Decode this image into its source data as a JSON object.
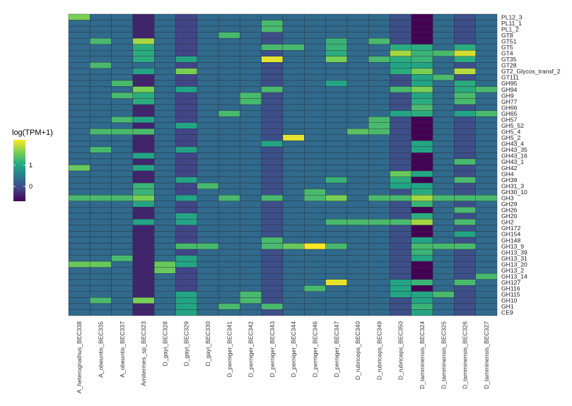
{
  "chart_data": {
    "type": "heatmap",
    "legend": {
      "title": "log(TPM+1)",
      "ticks": [
        0,
        1
      ],
      "range": [
        -0.7,
        2.2
      ],
      "placement": "left"
    },
    "colormap": [
      "#440154",
      "#414487",
      "#2a788e",
      "#22a884",
      "#7ad151",
      "#fde725"
    ],
    "columns": [
      "A_heterognathus_BEC338",
      "A_obeuntis_BEC335",
      "A_obeuntis_BEC337",
      "Amitermes_sp_BEC323",
      "D_gayi_BEC328",
      "D_gayi_BEC329",
      "D_gayi_BEC330",
      "D_perniger_BEC341",
      "D_perniger_BEC342",
      "D_perniger_BEC343",
      "D_perniger_BEC344",
      "D_perniger_BEC346",
      "D_perniger_BEC347",
      "D_rubriceps_BEC340",
      "D_rubriceps_BEC349",
      "D_rubriceps_BEC350",
      "D_tamminensis_BEC324",
      "D_tamminensis_BEC325",
      "D_tamminensis_BEC326",
      "D_tamminensis_BEC327"
    ],
    "rows": [
      "PL12_3",
      "PL11_1",
      "PL1_2",
      "GT8",
      "GT51",
      "GT5",
      "GT4",
      "GT35",
      "GT28",
      "GT2_Glycos_transf_2",
      "GT111",
      "GH95",
      "GH94",
      "GH9",
      "GH77",
      "GH66",
      "GH65",
      "GH57",
      "GH5_52",
      "GH5_4",
      "GH5_2",
      "GH43_4",
      "GH43_35",
      "GH43_16",
      "GH43_1",
      "GH42",
      "GH4",
      "GH39",
      "GH31_3",
      "GH30_10",
      "GH3",
      "GH29",
      "GH26",
      "GH20",
      "GH2",
      "GH172",
      "GH154",
      "GH148",
      "GH13_9",
      "GH13_39",
      "GH13_31",
      "GH13_20",
      "GH13_2",
      "GH13_14",
      "GH127",
      "GH116",
      "GH115",
      "GH10",
      "GH1",
      "CE9"
    ],
    "values": [
      [
        1.6,
        0.3,
        0.3,
        -0.4,
        0.3,
        -0.1,
        0.3,
        0.3,
        0.3,
        0.3,
        0.3,
        0.3,
        0.3,
        0.3,
        0.3,
        0.0,
        -0.7,
        0.3,
        0.0,
        0.3
      ],
      [
        0.3,
        0.3,
        0.3,
        -0.4,
        0.3,
        -0.1,
        0.3,
        0.3,
        0.3,
        1.3,
        0.3,
        0.3,
        0.3,
        0.3,
        0.3,
        0.0,
        -0.7,
        0.3,
        0.0,
        0.3
      ],
      [
        0.3,
        0.3,
        0.3,
        -0.4,
        0.3,
        -0.1,
        0.3,
        0.3,
        0.3,
        1.3,
        0.3,
        0.3,
        0.3,
        0.3,
        0.3,
        0.0,
        -0.7,
        0.3,
        0.0,
        0.3
      ],
      [
        0.3,
        0.3,
        0.3,
        -0.4,
        0.3,
        -0.1,
        0.3,
        1.3,
        0.3,
        0.0,
        0.3,
        0.3,
        0.3,
        0.3,
        0.3,
        0.0,
        -0.7,
        0.3,
        0.0,
        0.3
      ],
      [
        0.3,
        1.3,
        0.3,
        1.8,
        0.3,
        -0.1,
        0.3,
        0.3,
        0.3,
        0.0,
        0.3,
        0.3,
        1.2,
        0.3,
        1.3,
        0.0,
        -0.7,
        0.3,
        0.0,
        0.3
      ],
      [
        0.3,
        0.3,
        0.3,
        1.1,
        0.3,
        -0.1,
        0.3,
        0.3,
        0.3,
        1.3,
        1.3,
        0.3,
        1.2,
        0.3,
        0.3,
        1.1,
        1.1,
        0.3,
        1.1,
        0.3
      ],
      [
        0.3,
        0.3,
        0.3,
        1.1,
        0.3,
        -0.1,
        0.3,
        0.3,
        0.3,
        0.0,
        0.3,
        0.3,
        1.1,
        0.3,
        0.3,
        1.8,
        1.2,
        1.3,
        2.0,
        0.3
      ],
      [
        0.3,
        0.3,
        0.3,
        1.1,
        0.3,
        1.0,
        0.3,
        0.3,
        0.3,
        2.1,
        0.3,
        0.3,
        1.6,
        0.3,
        1.3,
        1.1,
        1.2,
        0.3,
        1.1,
        0.3
      ],
      [
        0.3,
        1.3,
        0.3,
        0.3,
        0.3,
        -0.1,
        0.3,
        0.3,
        0.3,
        0.0,
        0.3,
        0.3,
        0.3,
        0.3,
        0.3,
        1.0,
        1.0,
        0.3,
        0.0,
        0.3
      ],
      [
        0.3,
        0.3,
        0.3,
        1.0,
        0.3,
        1.6,
        0.3,
        0.3,
        0.3,
        0.0,
        0.3,
        0.3,
        0.3,
        0.3,
        0.3,
        1.1,
        1.6,
        0.3,
        1.9,
        0.3
      ],
      [
        0.3,
        0.3,
        0.3,
        -0.4,
        0.3,
        -0.1,
        0.3,
        0.3,
        0.3,
        0.0,
        0.3,
        0.3,
        0.3,
        0.3,
        0.3,
        0.0,
        1.0,
        1.3,
        0.0,
        0.3
      ],
      [
        0.3,
        0.3,
        1.3,
        -0.4,
        0.3,
        -0.1,
        0.3,
        0.3,
        0.3,
        0.0,
        0.3,
        0.3,
        1.0,
        0.3,
        0.3,
        0.0,
        1.0,
        0.3,
        1.1,
        0.3
      ],
      [
        0.3,
        0.3,
        0.3,
        1.6,
        0.3,
        1.0,
        0.3,
        0.3,
        0.3,
        1.3,
        0.3,
        0.3,
        0.3,
        0.3,
        0.3,
        1.3,
        1.6,
        0.3,
        1.1,
        1.3
      ],
      [
        0.3,
        0.3,
        1.3,
        1.1,
        0.3,
        -0.1,
        0.3,
        0.3,
        1.3,
        0.0,
        0.3,
        0.3,
        0.3,
        0.3,
        0.3,
        0.0,
        1.0,
        0.3,
        1.3,
        0.3
      ],
      [
        0.3,
        0.3,
        0.3,
        1.1,
        0.3,
        -0.1,
        0.3,
        0.3,
        1.3,
        0.0,
        0.3,
        0.3,
        0.3,
        0.3,
        0.3,
        0.0,
        1.1,
        0.3,
        1.3,
        0.3
      ],
      [
        0.3,
        0.3,
        0.3,
        -0.4,
        0.3,
        -0.1,
        0.3,
        0.3,
        0.3,
        0.0,
        0.3,
        0.3,
        0.3,
        0.3,
        0.3,
        0.0,
        1.3,
        0.3,
        0.0,
        0.3
      ],
      [
        0.3,
        0.3,
        0.3,
        -0.4,
        0.3,
        -0.1,
        0.3,
        1.3,
        0.3,
        0.0,
        0.3,
        0.3,
        0.3,
        0.3,
        0.3,
        1.0,
        1.1,
        0.3,
        1.0,
        1.3
      ],
      [
        0.3,
        0.3,
        1.3,
        1.0,
        0.3,
        -0.1,
        0.3,
        0.3,
        0.3,
        0.0,
        0.3,
        0.3,
        0.3,
        0.3,
        1.3,
        0.0,
        -0.7,
        0.3,
        0.0,
        0.3
      ],
      [
        0.3,
        0.3,
        0.3,
        -0.4,
        0.3,
        1.0,
        0.3,
        0.3,
        0.3,
        0.0,
        0.3,
        0.3,
        0.3,
        0.3,
        1.3,
        0.0,
        -0.7,
        0.3,
        0.0,
        0.3
      ],
      [
        0.3,
        1.3,
        1.3,
        1.3,
        0.3,
        -0.1,
        0.3,
        0.3,
        0.3,
        0.0,
        0.3,
        0.3,
        0.3,
        1.4,
        1.3,
        0.0,
        -0.7,
        0.3,
        0.0,
        0.3
      ],
      [
        0.3,
        0.3,
        0.3,
        -0.4,
        0.3,
        -0.1,
        0.3,
        0.3,
        0.3,
        0.0,
        2.1,
        0.3,
        0.3,
        0.3,
        0.3,
        0.0,
        -0.7,
        0.3,
        0.0,
        0.3
      ],
      [
        0.3,
        0.3,
        0.3,
        -0.4,
        0.3,
        -0.1,
        0.3,
        0.3,
        0.3,
        1.0,
        0.3,
        0.3,
        0.3,
        0.3,
        0.3,
        0.0,
        1.0,
        0.3,
        0.0,
        0.3
      ],
      [
        0.3,
        1.3,
        0.3,
        -0.4,
        0.3,
        1.0,
        0.3,
        0.3,
        0.3,
        0.0,
        0.3,
        0.3,
        0.3,
        0.3,
        0.3,
        0.0,
        1.0,
        0.3,
        0.0,
        0.3
      ],
      [
        0.3,
        0.3,
        0.3,
        1.0,
        0.3,
        -0.1,
        0.3,
        0.3,
        0.3,
        0.0,
        0.3,
        0.3,
        0.3,
        0.3,
        0.3,
        0.0,
        -0.7,
        0.3,
        0.0,
        0.3
      ],
      [
        0.3,
        0.3,
        0.3,
        -0.4,
        0.3,
        -0.1,
        0.3,
        0.3,
        0.3,
        0.0,
        0.3,
        0.3,
        0.3,
        0.3,
        0.3,
        0.0,
        -0.7,
        0.3,
        1.3,
        0.3
      ],
      [
        1.5,
        0.3,
        0.3,
        1.0,
        0.3,
        -0.1,
        0.3,
        0.3,
        0.3,
        0.0,
        0.3,
        0.3,
        0.3,
        0.3,
        0.3,
        0.0,
        -0.7,
        0.3,
        0.0,
        0.3
      ],
      [
        0.3,
        0.3,
        0.3,
        -0.4,
        0.3,
        -0.1,
        0.3,
        0.3,
        0.3,
        0.0,
        0.3,
        0.3,
        0.3,
        0.3,
        0.3,
        1.5,
        1.0,
        0.3,
        0.0,
        0.3
      ],
      [
        0.3,
        0.3,
        0.3,
        -0.4,
        0.3,
        1.0,
        0.3,
        0.3,
        0.3,
        0.0,
        0.3,
        0.3,
        1.2,
        0.3,
        0.3,
        1.1,
        -0.7,
        0.3,
        1.3,
        0.3
      ],
      [
        0.3,
        0.3,
        0.3,
        1.2,
        0.3,
        -0.1,
        1.3,
        0.3,
        0.3,
        0.0,
        0.3,
        0.3,
        0.3,
        0.3,
        0.3,
        1.0,
        1.0,
        0.3,
        0.0,
        0.3
      ],
      [
        0.3,
        0.3,
        0.3,
        1.2,
        0.3,
        -0.1,
        0.3,
        0.3,
        0.3,
        0.0,
        0.3,
        1.3,
        0.3,
        0.3,
        0.3,
        0.0,
        1.1,
        0.3,
        0.0,
        0.3
      ],
      [
        1.3,
        1.3,
        1.3,
        1.6,
        0.3,
        1.0,
        0.3,
        1.3,
        0.3,
        1.3,
        0.3,
        1.3,
        1.6,
        0.3,
        1.3,
        1.3,
        1.8,
        1.3,
        1.3,
        1.3
      ],
      [
        0.3,
        0.3,
        0.3,
        1.0,
        0.3,
        -0.1,
        0.3,
        0.3,
        0.3,
        0.0,
        0.3,
        0.3,
        0.3,
        0.3,
        0.3,
        0.0,
        1.2,
        0.3,
        0.0,
        0.3
      ],
      [
        0.3,
        0.3,
        0.3,
        -0.4,
        0.3,
        -0.1,
        0.3,
        0.3,
        0.3,
        0.0,
        0.3,
        0.3,
        0.3,
        0.3,
        0.3,
        0.0,
        -0.7,
        0.3,
        1.3,
        0.3
      ],
      [
        0.3,
        0.3,
        0.3,
        -0.4,
        0.3,
        1.0,
        0.3,
        0.3,
        0.3,
        0.0,
        0.3,
        0.3,
        0.3,
        0.3,
        0.3,
        0.0,
        1.1,
        0.3,
        0.0,
        0.3
      ],
      [
        0.3,
        0.3,
        0.3,
        1.0,
        0.3,
        1.0,
        0.3,
        0.3,
        0.3,
        0.0,
        0.3,
        0.3,
        1.3,
        1.3,
        1.3,
        1.3,
        1.8,
        0.3,
        1.3,
        0.3
      ],
      [
        0.3,
        0.3,
        0.3,
        -0.4,
        0.3,
        -0.1,
        0.3,
        0.3,
        0.3,
        0.0,
        0.3,
        0.3,
        0.3,
        0.3,
        0.3,
        0.0,
        -0.7,
        0.3,
        0.0,
        0.3
      ],
      [
        0.3,
        0.3,
        0.3,
        -0.4,
        0.3,
        -0.1,
        0.3,
        0.3,
        0.3,
        0.0,
        0.3,
        0.3,
        0.3,
        0.3,
        0.3,
        0.0,
        -0.7,
        0.3,
        1.0,
        0.3
      ],
      [
        0.3,
        0.3,
        0.3,
        -0.4,
        0.3,
        -0.1,
        0.3,
        0.3,
        0.3,
        1.3,
        0.3,
        0.3,
        0.3,
        0.3,
        0.3,
        0.0,
        1.0,
        0.3,
        0.0,
        0.3
      ],
      [
        0.3,
        0.3,
        0.3,
        -0.4,
        0.3,
        1.3,
        1.3,
        0.3,
        0.3,
        1.3,
        1.5,
        2.2,
        1.3,
        0.3,
        0.3,
        0.0,
        1.3,
        1.3,
        1.3,
        0.3
      ],
      [
        0.3,
        0.3,
        0.3,
        -0.4,
        0.3,
        -0.1,
        0.3,
        0.3,
        0.3,
        0.0,
        0.3,
        0.3,
        0.3,
        0.3,
        0.3,
        0.0,
        1.2,
        0.3,
        0.0,
        0.3
      ],
      [
        0.3,
        0.3,
        1.3,
        -0.4,
        0.3,
        1.0,
        0.3,
        0.3,
        0.3,
        0.0,
        0.3,
        0.3,
        0.3,
        0.3,
        0.3,
        0.0,
        1.0,
        0.3,
        0.0,
        0.3
      ],
      [
        1.5,
        1.5,
        0.3,
        -0.4,
        1.5,
        1.0,
        0.3,
        0.3,
        0.3,
        0.0,
        0.3,
        0.3,
        0.3,
        0.3,
        0.3,
        0.0,
        -0.7,
        0.3,
        0.0,
        0.3
      ],
      [
        0.3,
        0.3,
        0.3,
        -0.4,
        1.5,
        -0.1,
        0.3,
        0.3,
        0.3,
        0.0,
        0.3,
        0.3,
        0.3,
        0.3,
        0.3,
        0.0,
        -0.7,
        0.3,
        0.0,
        0.3
      ],
      [
        0.3,
        0.3,
        0.3,
        -0.4,
        0.3,
        -0.1,
        0.3,
        0.3,
        0.3,
        0.0,
        0.3,
        0.3,
        0.3,
        0.3,
        0.3,
        0.0,
        -0.7,
        0.3,
        0.0,
        1.3
      ],
      [
        0.3,
        0.3,
        0.3,
        -0.4,
        0.3,
        -0.1,
        0.3,
        0.3,
        0.3,
        0.0,
        0.3,
        0.3,
        2.1,
        0.3,
        0.3,
        1.0,
        1.2,
        0.3,
        1.3,
        0.3
      ],
      [
        0.3,
        0.3,
        0.3,
        -0.4,
        0.3,
        -0.1,
        0.3,
        0.3,
        0.3,
        0.0,
        0.3,
        1.3,
        0.3,
        0.3,
        0.3,
        1.0,
        -0.7,
        0.3,
        0.0,
        0.3
      ],
      [
        0.3,
        0.3,
        0.3,
        -0.4,
        0.3,
        1.0,
        0.3,
        0.3,
        1.3,
        0.0,
        0.3,
        0.3,
        0.3,
        0.3,
        0.3,
        1.0,
        1.0,
        1.3,
        0.0,
        0.3
      ],
      [
        0.3,
        1.3,
        0.3,
        1.6,
        0.3,
        1.0,
        0.3,
        0.3,
        1.3,
        0.0,
        0.3,
        0.3,
        0.3,
        0.3,
        0.3,
        0.0,
        1.0,
        0.3,
        0.0,
        0.3
      ],
      [
        0.3,
        0.3,
        0.3,
        -0.4,
        0.3,
        1.0,
        0.3,
        1.3,
        0.3,
        1.3,
        0.3,
        0.3,
        0.3,
        0.3,
        0.3,
        0.0,
        1.2,
        0.3,
        0.0,
        0.3
      ],
      [
        0.3,
        0.3,
        0.3,
        -0.4,
        0.3,
        1.0,
        0.3,
        0.3,
        0.3,
        0.0,
        0.3,
        0.3,
        0.3,
        0.3,
        0.3,
        0.0,
        1.0,
        0.3,
        0.0,
        0.3
      ]
    ]
  }
}
